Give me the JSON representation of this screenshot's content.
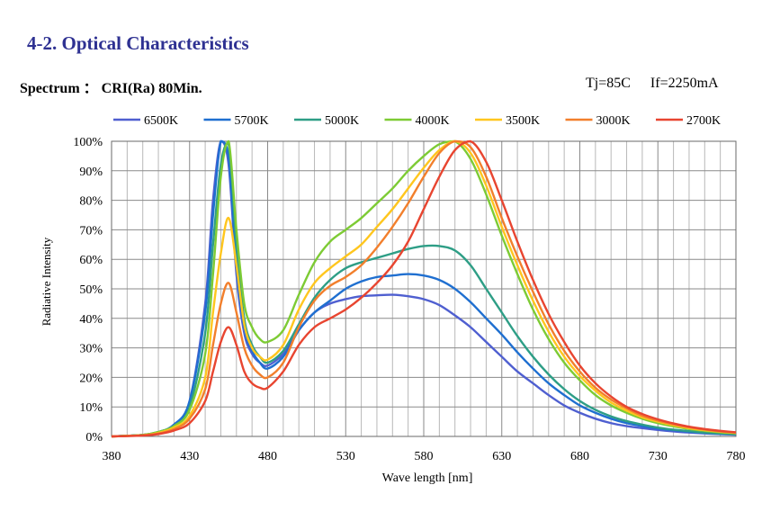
{
  "header": {
    "section_title": "4-2. Optical Characteristics",
    "spectrum_label": "Spectrum ： CRI(Ra) 80Min.",
    "conditions": [
      "Tj=85C",
      "If=2250mA"
    ]
  },
  "chart_data": {
    "type": "line",
    "title": "",
    "xlabel": "Wave length [nm]",
    "ylabel": "Radiative Intensity",
    "xlim": [
      380,
      780
    ],
    "ylim": [
      0,
      100
    ],
    "x_ticks": [
      "380",
      "430",
      "480",
      "530",
      "580",
      "630",
      "680",
      "730",
      "780"
    ],
    "y_ticks": [
      "0%",
      "10%",
      "20%",
      "30%",
      "40%",
      "50%",
      "60%",
      "70%",
      "80%",
      "90%",
      "100%"
    ],
    "grid": true,
    "legend_position": "top",
    "series": [
      {
        "name": "6500K",
        "color": "#4F5FD0",
        "x": [
          380,
          400,
          410,
          420,
          430,
          440,
          445,
          450,
          455,
          460,
          465,
          470,
          475,
          480,
          490,
          500,
          510,
          520,
          530,
          540,
          550,
          560,
          570,
          580,
          590,
          600,
          610,
          620,
          630,
          640,
          650,
          660,
          670,
          680,
          690,
          700,
          710,
          720,
          730,
          740,
          750,
          760,
          770,
          780
        ],
        "y": [
          0,
          0.5,
          1.5,
          4,
          12,
          45,
          80,
          100,
          92,
          55,
          35,
          28,
          25,
          24,
          28,
          36,
          42,
          45,
          46.5,
          47.5,
          47.8,
          48,
          47.5,
          46.5,
          44.5,
          41,
          37,
          32,
          27,
          22,
          18,
          14,
          10.5,
          8,
          6,
          4.5,
          3.5,
          2.8,
          2.2,
          1.7,
          1.3,
          1,
          0.8,
          0.6
        ]
      },
      {
        "name": "5700K",
        "color": "#1F6FD0",
        "x": [
          380,
          400,
          410,
          420,
          430,
          440,
          445,
          450,
          455,
          460,
          465,
          470,
          475,
          480,
          490,
          500,
          510,
          520,
          530,
          540,
          550,
          560,
          570,
          580,
          590,
          600,
          610,
          620,
          630,
          640,
          650,
          660,
          670,
          680,
          690,
          700,
          710,
          720,
          730,
          740,
          750,
          760,
          770,
          780
        ],
        "y": [
          0,
          0.5,
          1.5,
          4,
          12,
          42,
          75,
          100,
          95,
          58,
          37,
          29,
          25,
          23,
          27,
          36,
          42,
          46,
          50,
          52.5,
          54,
          54.5,
          55,
          54.5,
          53,
          50,
          45.5,
          40,
          34.5,
          28.5,
          23,
          18,
          14,
          10.5,
          8,
          6,
          4.5,
          3.5,
          2.7,
          2.1,
          1.6,
          1.2,
          0.9,
          0.7
        ]
      },
      {
        "name": "5000K",
        "color": "#2E9E86",
        "x": [
          380,
          400,
          410,
          420,
          430,
          440,
          445,
          450,
          455,
          460,
          465,
          470,
          475,
          480,
          490,
          500,
          510,
          520,
          530,
          540,
          550,
          560,
          570,
          580,
          590,
          600,
          610,
          620,
          630,
          640,
          650,
          660,
          670,
          680,
          690,
          700,
          710,
          720,
          730,
          740,
          750,
          760,
          770,
          780
        ],
        "y": [
          0,
          0.5,
          1.5,
          3.5,
          10,
          35,
          65,
          92,
          99,
          65,
          40,
          31,
          27,
          25,
          29,
          38,
          47,
          53,
          57,
          59,
          60.5,
          62,
          63.5,
          64.5,
          64.5,
          63,
          58,
          50,
          42,
          34,
          27,
          21,
          16,
          12,
          9,
          6.8,
          5.2,
          4,
          3,
          2.3,
          1.8,
          1.3,
          1,
          0.8
        ]
      },
      {
        "name": "4000K",
        "color": "#7DCB34",
        "x": [
          380,
          400,
          410,
          420,
          430,
          440,
          445,
          450,
          455,
          460,
          465,
          470,
          475,
          480,
          490,
          500,
          510,
          520,
          530,
          540,
          550,
          560,
          570,
          580,
          590,
          600,
          610,
          620,
          630,
          640,
          650,
          660,
          670,
          680,
          690,
          700,
          710,
          720,
          730,
          740,
          750,
          760,
          770,
          780
        ],
        "y": [
          0,
          0.5,
          1.5,
          3.5,
          9,
          28,
          55,
          88,
          100,
          70,
          45,
          37,
          33,
          32,
          36,
          48,
          59,
          66,
          70,
          74,
          79,
          84,
          90,
          95,
          99,
          100,
          94,
          82,
          68,
          55,
          43,
          33,
          25,
          19,
          14,
          10.5,
          8,
          6,
          4.5,
          3.4,
          2.5,
          1.9,
          1.4,
          1
        ]
      },
      {
        "name": "3500K",
        "color": "#FFC61E",
        "x": [
          380,
          400,
          410,
          420,
          430,
          440,
          445,
          450,
          455,
          460,
          465,
          470,
          475,
          480,
          490,
          500,
          510,
          520,
          530,
          540,
          550,
          560,
          570,
          580,
          590,
          600,
          610,
          620,
          630,
          640,
          650,
          660,
          670,
          680,
          690,
          700,
          710,
          720,
          730,
          740,
          750,
          760,
          770,
          780
        ],
        "y": [
          0,
          0.4,
          1.2,
          3,
          7,
          20,
          42,
          62,
          74,
          58,
          38,
          30,
          27,
          26,
          31,
          43,
          52,
          57,
          61,
          65,
          71,
          77,
          84,
          91,
          97,
          100,
          96,
          85,
          71,
          58,
          46,
          35.5,
          27,
          20.5,
          15.5,
          11.5,
          8.7,
          6.5,
          5,
          3.8,
          2.8,
          2.1,
          1.6,
          1.2
        ]
      },
      {
        "name": "3000K",
        "color": "#F27F2C",
        "x": [
          380,
          400,
          410,
          420,
          430,
          440,
          445,
          450,
          455,
          460,
          465,
          470,
          475,
          480,
          490,
          500,
          510,
          520,
          530,
          540,
          550,
          560,
          570,
          580,
          590,
          600,
          610,
          620,
          630,
          640,
          650,
          660,
          670,
          680,
          690,
          700,
          710,
          720,
          730,
          740,
          750,
          760,
          770,
          780
        ],
        "y": [
          0,
          0.4,
          1,
          2.5,
          6,
          16,
          31,
          45,
          52,
          42,
          30,
          24,
          21,
          20,
          25,
          37,
          46,
          51,
          54,
          58,
          64,
          71,
          79,
          88,
          96,
          100,
          98,
          88,
          74,
          61,
          49,
          38,
          29,
          22,
          16.5,
          12.5,
          9.5,
          7,
          5.4,
          4.1,
          3.1,
          2.3,
          1.7,
          1.3
        ]
      },
      {
        "name": "2700K",
        "color": "#E84530",
        "x": [
          380,
          400,
          410,
          420,
          430,
          440,
          445,
          450,
          455,
          460,
          465,
          470,
          475,
          480,
          490,
          500,
          510,
          520,
          530,
          540,
          550,
          560,
          570,
          580,
          590,
          600,
          610,
          620,
          630,
          640,
          650,
          660,
          670,
          680,
          690,
          700,
          710,
          720,
          730,
          740,
          750,
          760,
          770,
          780
        ],
        "y": [
          0,
          0.3,
          0.8,
          2,
          4.5,
          12,
          22,
          32,
          37,
          31,
          22,
          18,
          16.5,
          16.5,
          22,
          31,
          37,
          40,
          43,
          47,
          52,
          58,
          66,
          77,
          88,
          97,
          100,
          93,
          80,
          66,
          53,
          41.5,
          32,
          24,
          18,
          13.5,
          10,
          7.6,
          5.8,
          4.4,
          3.3,
          2.5,
          1.9,
          1.4
        ]
      }
    ]
  }
}
